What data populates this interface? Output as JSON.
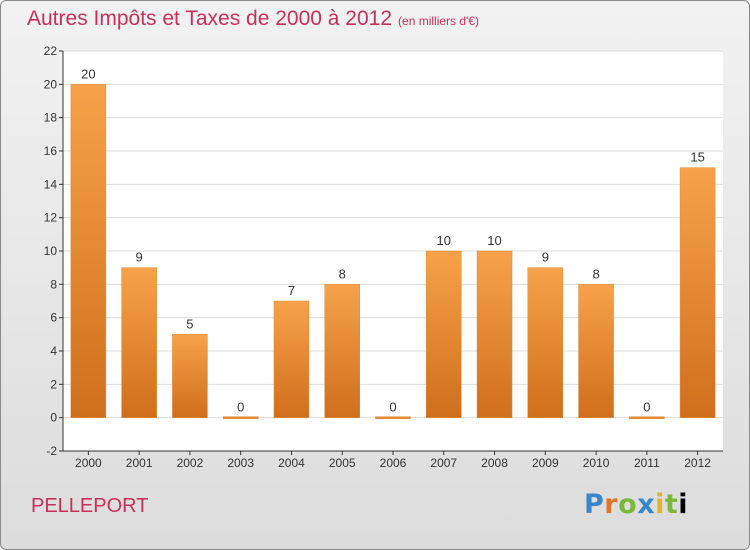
{
  "header": {
    "title": "Autres Impôts et Taxes de 2000 à 2012",
    "subtitle": "(en milliers d'€)"
  },
  "footer": {
    "commune": "PELLEPORT",
    "logo_text": "Proxiti"
  },
  "colors": {
    "title": "#c8305a",
    "bar_top": "#f7a24a",
    "bar_bottom": "#d06e1c",
    "grid": "#dddddd"
  },
  "chart_data": {
    "type": "bar",
    "title": "Autres Impôts et Taxes de 2000 à 2012",
    "subtitle": "(en milliers d'€)",
    "categories": [
      "2000",
      "2001",
      "2002",
      "2003",
      "2004",
      "2005",
      "2006",
      "2007",
      "2008",
      "2009",
      "2010",
      "2011",
      "2012"
    ],
    "values": [
      20,
      9,
      5,
      0,
      7,
      8,
      0,
      10,
      10,
      9,
      8,
      0,
      15
    ],
    "data_labels": [
      "20",
      "9",
      "5",
      "0",
      "7",
      "8",
      "0",
      "10",
      "10",
      "9",
      "8",
      "0",
      "15"
    ],
    "xlabel": "",
    "ylabel": "",
    "ylim": [
      -2,
      22
    ],
    "yticks": [
      -2,
      0,
      2,
      4,
      6,
      8,
      10,
      12,
      14,
      16,
      18,
      20,
      22
    ],
    "grid": true,
    "legend": "none"
  }
}
